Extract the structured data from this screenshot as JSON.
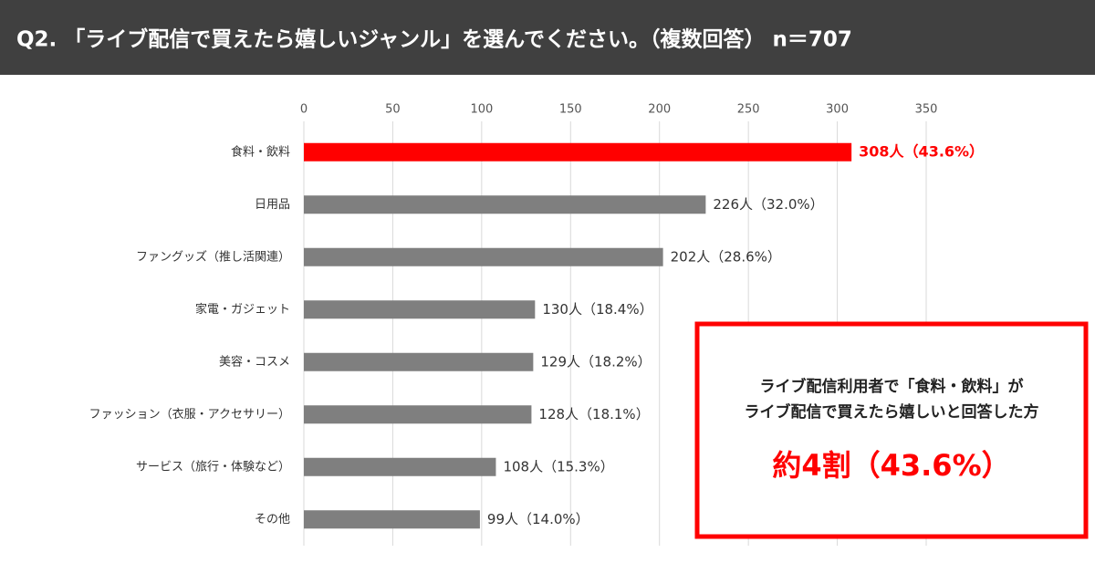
{
  "chart_data": {
    "type": "barh",
    "title": "Q2. 「ライブ配信で買えたら嬉しいジャンル」を選んでください。（複数回答） n＝707",
    "categories": [
      "食料・飲料",
      "日用品",
      "ファングッズ（推し活関連）",
      "家電・ガジェット",
      "美容・コスメ",
      "ファッション（衣服・アクセサリー）",
      "サービス（旅行・体験など）",
      "その他"
    ],
    "values": [
      308,
      226,
      202,
      130,
      129,
      128,
      108,
      99
    ],
    "value_labels": [
      "308人（43.6%）",
      "226人（32.0%）",
      "202人（28.6%）",
      "130人（18.4%）",
      "129人（18.2%）",
      "128人（18.1%）",
      "108人（15.3%）",
      "99人（14.0%）"
    ],
    "color": "#7f7f7f",
    "colors": [
      "#ff0000",
      "#7f7f7f",
      "#7f7f7f",
      "#7f7f7f",
      "#7f7f7f",
      "#7f7f7f",
      "#7f7f7f",
      "#7f7f7f"
    ],
    "xlim": [
      0,
      350
    ],
    "xticks": [
      0,
      50,
      100,
      150,
      200,
      250,
      300,
      350
    ],
    "grid": true,
    "annotations": [
      "ライブ配信利用者で「食料・飲料」が",
      "ライブ配信で買えたら嬉しいと回答した方",
      "約4割（43.6%）"
    ]
  }
}
